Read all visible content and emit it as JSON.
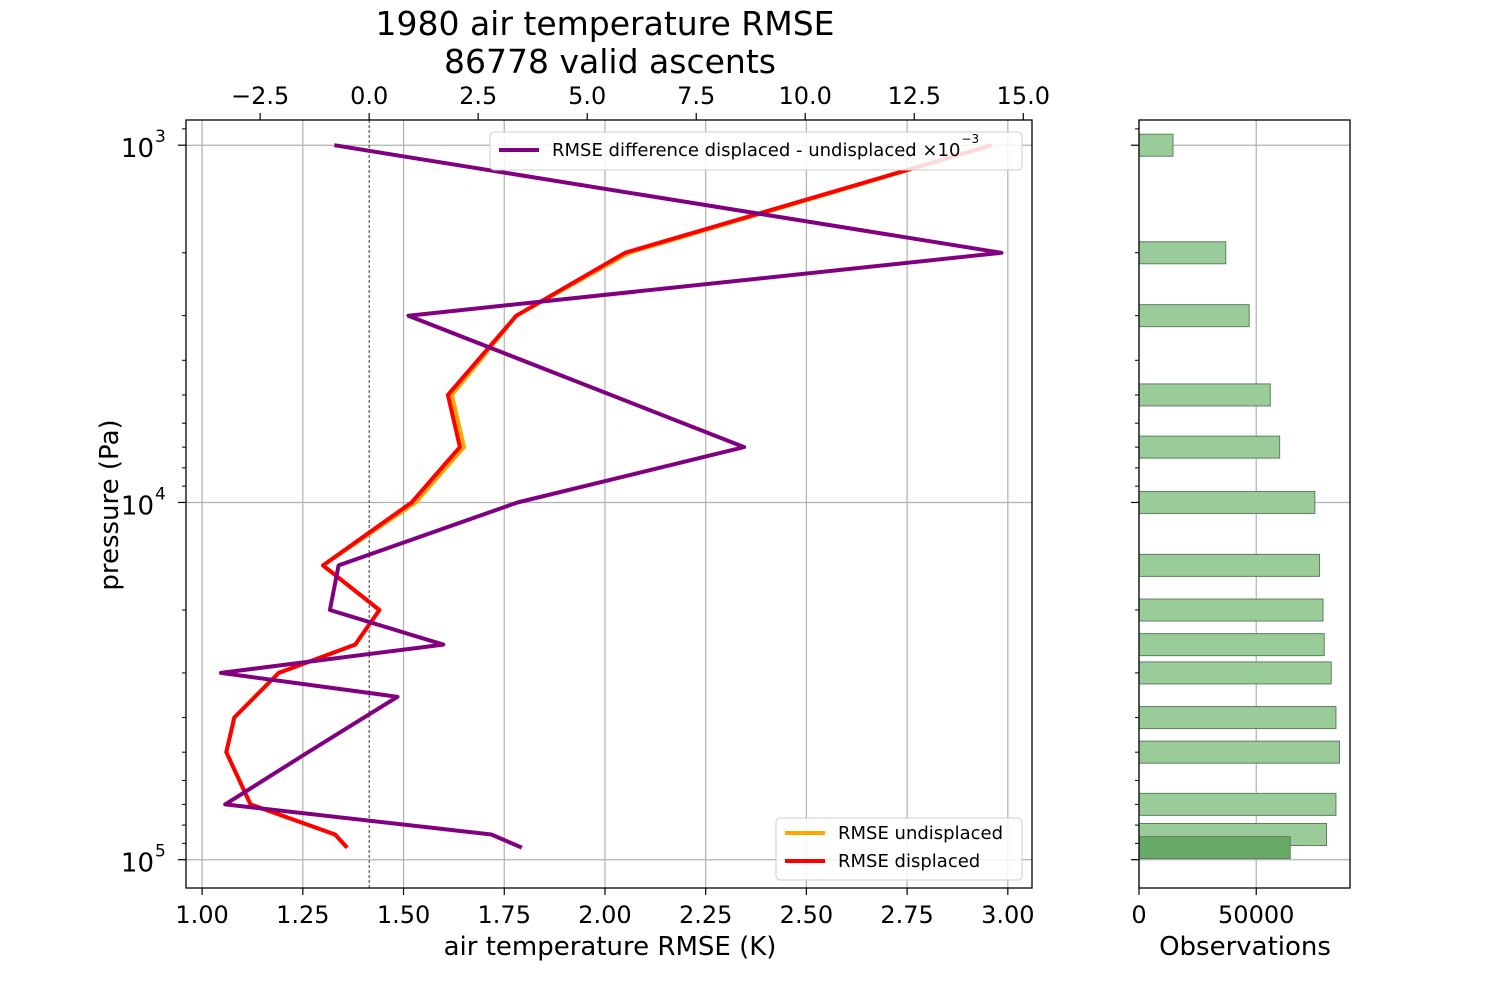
{
  "title_line1": "1980 air temperature RMSE",
  "title_line2": "86778 valid ascents",
  "chart_data": [
    {
      "type": "line",
      "xlabel": "air temperature RMSE (K)",
      "ylabel": "pressure (Pa)",
      "y_scale": "log",
      "y_inverted": true,
      "ylim": [
        120000.0,
        850
      ],
      "xlim": [
        0.96,
        3.06
      ],
      "x_ticks": [
        "1.00",
        "1.25",
        "1.50",
        "1.75",
        "2.00",
        "2.25",
        "2.50",
        "2.75",
        "3.00"
      ],
      "y_ticks": [
        1000,
        10000,
        100000
      ],
      "y_tick_base": "10",
      "y_tick_exponents": [
        "3",
        "4",
        "5"
      ],
      "grid": true,
      "legend": "lower right",
      "series": [
        {
          "name": "RMSE undisplaced",
          "color": "#ffa500",
          "points": [
            [
              2.96,
              1000
            ],
            [
              2.06,
              2000
            ],
            [
              1.78,
              3000
            ],
            [
              1.62,
              5000
            ],
            [
              1.65,
              7000
            ],
            [
              1.53,
              10000
            ],
            [
              1.3,
              15000
            ],
            [
              1.44,
              20000
            ],
            [
              1.38,
              25000
            ],
            [
              1.19,
              30000
            ],
            [
              1.08,
              40000
            ],
            [
              1.06,
              50000
            ],
            [
              1.12,
              70000
            ],
            [
              1.33,
              85000
            ],
            [
              1.36,
              92500
            ]
          ]
        },
        {
          "name": "RMSE displaced",
          "color": "#ff0000",
          "points": [
            [
              2.96,
              1000
            ],
            [
              2.05,
              2000
            ],
            [
              1.78,
              3000
            ],
            [
              1.61,
              5000
            ],
            [
              1.64,
              7000
            ],
            [
              1.52,
              10000
            ],
            [
              1.3,
              15000
            ],
            [
              1.44,
              20000
            ],
            [
              1.38,
              25000
            ],
            [
              1.19,
              30000
            ],
            [
              1.08,
              40000
            ],
            [
              1.06,
              50000
            ],
            [
              1.12,
              70000
            ],
            [
              1.33,
              85000
            ],
            [
              1.36,
              92500
            ]
          ]
        }
      ]
    },
    {
      "type": "line",
      "xlabel": "",
      "x_ticks": [
        "−2.5",
        "0.0",
        "2.5",
        "5.0",
        "7.5",
        "10.0",
        "12.5",
        "15.0"
      ],
      "xlim": [
        -4.2,
        15.2
      ],
      "zero_line": true,
      "legend": "top-right",
      "series": [
        {
          "name": "RMSE difference displaced - undisplaced ×10⁻³",
          "name_main": "RMSE difference displaced - undisplaced ×10",
          "name_exp": "−3",
          "color": "#800080",
          "points": [
            [
              -0.8,
              1000
            ],
            [
              14.5,
              2000
            ],
            [
              0.9,
              3000
            ],
            [
              8.6,
              7000
            ],
            [
              3.4,
              10000
            ],
            [
              -0.7,
              15000
            ],
            [
              -0.9,
              20000
            ],
            [
              1.7,
              25000
            ],
            [
              -3.4,
              30000
            ],
            [
              0.65,
              35000
            ],
            [
              -1.4,
              50000
            ],
            [
              -3.3,
              70000
            ],
            [
              2.8,
              85000
            ],
            [
              3.5,
              92500
            ]
          ]
        }
      ]
    },
    {
      "type": "bar",
      "orientation": "horizontal",
      "xlabel": "Observations",
      "x_ticks": [
        "0",
        "50000"
      ],
      "xlim": [
        0,
        90000
      ],
      "color": "#99cc99",
      "edge_color": "#5f7f5f",
      "bars": [
        {
          "p": 1000,
          "value": 14500
        },
        {
          "p": 2000,
          "value": 37000
        },
        {
          "p": 3000,
          "value": 47000
        },
        {
          "p": 5000,
          "value": 56000
        },
        {
          "p": 7000,
          "value": 60000
        },
        {
          "p": 10000,
          "value": 75000
        },
        {
          "p": 15000,
          "value": 77000
        },
        {
          "p": 20000,
          "value": 78500
        },
        {
          "p": 25000,
          "value": 79000
        },
        {
          "p": 30000,
          "value": 82000
        },
        {
          "p": 40000,
          "value": 84000
        },
        {
          "p": 50000,
          "value": 85500
        },
        {
          "p": 70000,
          "value": 84000
        },
        {
          "p": 85000,
          "value": 80000
        }
      ],
      "highlight_bar": {
        "p": 92500,
        "value": 64500,
        "color": "#66aa66"
      }
    }
  ]
}
